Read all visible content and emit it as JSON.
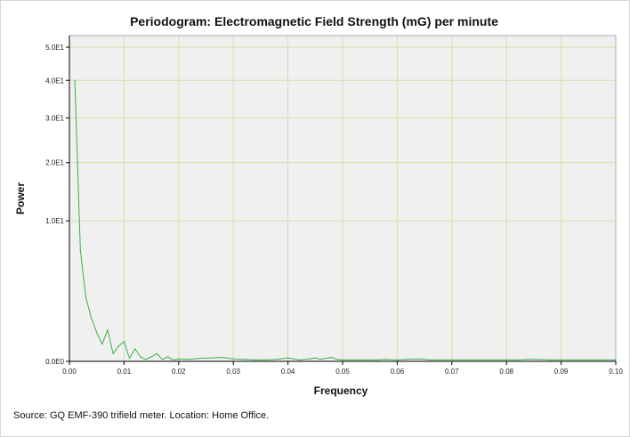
{
  "chart_data": {
    "type": "line",
    "title": "Periodogram: Electromagnetic Field Strength (mG) per minute",
    "xlabel": "Frequency",
    "ylabel": "Power",
    "xlim": [
      0,
      0.1
    ],
    "ylim": [
      0,
      50
    ],
    "y_scale": "sqrt",
    "grid": true,
    "x_ticks": [
      {
        "value": 0.0,
        "label": "0.00"
      },
      {
        "value": 0.01,
        "label": "0.01"
      },
      {
        "value": 0.02,
        "label": "0.02"
      },
      {
        "value": 0.03,
        "label": "0.03"
      },
      {
        "value": 0.04,
        "label": "0.04"
      },
      {
        "value": 0.05,
        "label": "0.05"
      },
      {
        "value": 0.06,
        "label": "0.06"
      },
      {
        "value": 0.07,
        "label": "0.07"
      },
      {
        "value": 0.08,
        "label": "0.08"
      },
      {
        "value": 0.09,
        "label": "0.09"
      },
      {
        "value": 0.1,
        "label": "0.10"
      }
    ],
    "y_ticks": [
      {
        "value": 0,
        "label": "0.0E0"
      },
      {
        "value": 10,
        "label": "1.0E1"
      },
      {
        "value": 20,
        "label": "2.0E1"
      },
      {
        "value": 30,
        "label": "3.0E1"
      },
      {
        "value": 40,
        "label": "4.0E1"
      },
      {
        "value": 50,
        "label": "5.0E1"
      }
    ],
    "series": [
      {
        "color": "#3cb04a",
        "x": [
          0.001,
          0.002,
          0.003,
          0.004,
          0.005,
          0.006,
          0.007,
          0.008,
          0.009,
          0.01,
          0.011,
          0.012,
          0.013,
          0.014,
          0.015,
          0.016,
          0.017,
          0.018,
          0.019,
          0.02,
          0.022,
          0.024,
          0.026,
          0.028,
          0.03,
          0.032,
          0.034,
          0.036,
          0.038,
          0.04,
          0.042,
          0.044,
          0.045,
          0.046,
          0.047,
          0.048,
          0.049,
          0.05,
          0.052,
          0.054,
          0.056,
          0.058,
          0.06,
          0.062,
          0.064,
          0.066,
          0.068,
          0.07,
          0.072,
          0.074,
          0.076,
          0.078,
          0.08,
          0.082,
          0.084,
          0.086,
          0.088,
          0.09,
          0.092,
          0.094,
          0.096,
          0.098,
          0.1
        ],
        "y": [
          40,
          6.3,
          2.1,
          0.95,
          0.42,
          0.15,
          0.5,
          0.03,
          0.12,
          0.2,
          0.005,
          0.08,
          0.01,
          0.002,
          0.01,
          0.03,
          0.002,
          0.01,
          0.001,
          0.003,
          0.002,
          0.005,
          0.006,
          0.008,
          0.003,
          0.002,
          0.001,
          0.001,
          0.002,
          0.006,
          0.001,
          0.003,
          0.006,
          0.002,
          0.005,
          0.008,
          0.002,
          0.001,
          0.001,
          0.001,
          0.001,
          0.002,
          0.001,
          0.002,
          0.003,
          0.001,
          0.001,
          0.001,
          0.001,
          0.001,
          0.001,
          0.001,
          0.001,
          0.001,
          0.002,
          0.002,
          0.001,
          0.001,
          0.001,
          0.001,
          0.001,
          0.001,
          0.001
        ]
      }
    ],
    "colors": {
      "plot_background": "#f0f0f0",
      "grid": "#d9dca8",
      "axis": "#000000"
    }
  },
  "footer": {
    "source": "Source: GQ EMF-390 trifield meter. Location: Home Office."
  }
}
